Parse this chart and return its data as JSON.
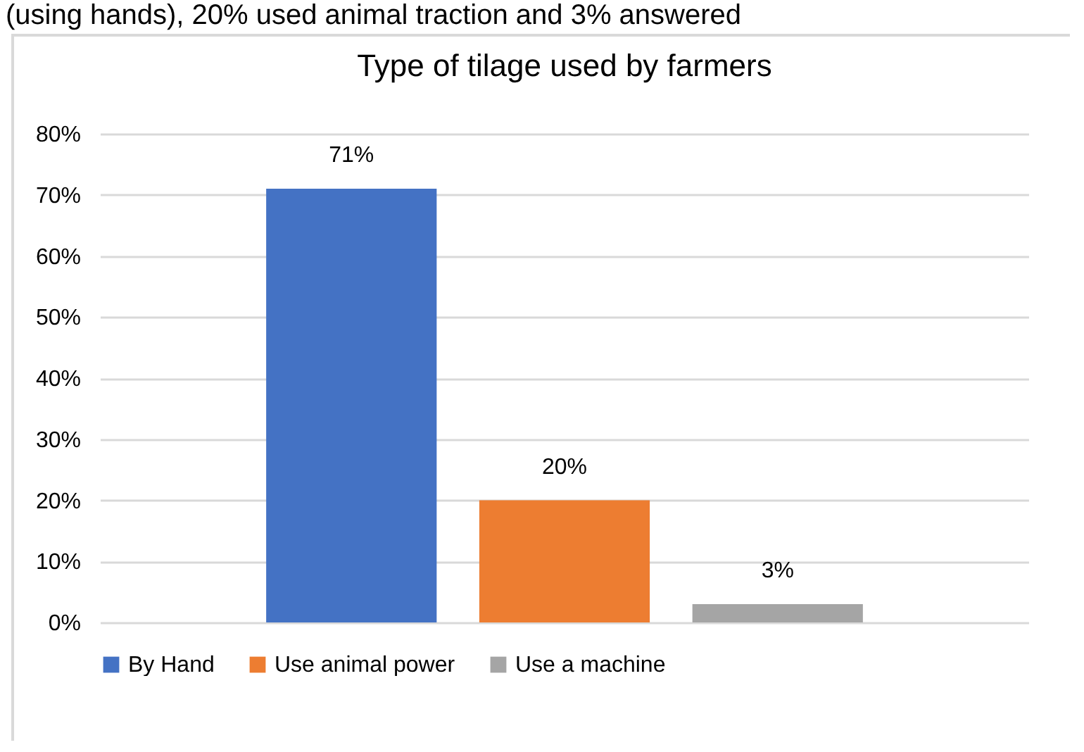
{
  "chart_data": {
    "type": "bar",
    "title": "Type of tilage used by farmers",
    "annotations": [
      "(using hands), 20% used animal traction and 3% answered"
    ],
    "categories": [
      null
    ],
    "series": [
      {
        "name": "By Hand",
        "color": "#4472c4",
        "values": [
          71
        ],
        "value_labels": [
          "71%"
        ]
      },
      {
        "name": "Use animal power",
        "color": "#ed7d31",
        "values": [
          20
        ],
        "value_labels": [
          "20%"
        ]
      },
      {
        "name": "Use a machine",
        "color": "#a5a5a5",
        "values": [
          3
        ],
        "value_labels": [
          "3%"
        ]
      }
    ],
    "ylim": [
      0,
      80
    ],
    "yticks": [
      {
        "value": 0,
        "label": "0%"
      },
      {
        "value": 10,
        "label": "10%"
      },
      {
        "value": 20,
        "label": "20%"
      },
      {
        "value": 30,
        "label": "30%"
      },
      {
        "value": 40,
        "label": "40%"
      },
      {
        "value": 50,
        "label": "50%"
      },
      {
        "value": 60,
        "label": "60%"
      },
      {
        "value": 70,
        "label": "70%"
      },
      {
        "value": 80,
        "label": "80%"
      }
    ],
    "grid": "y",
    "legend": "bottom"
  }
}
